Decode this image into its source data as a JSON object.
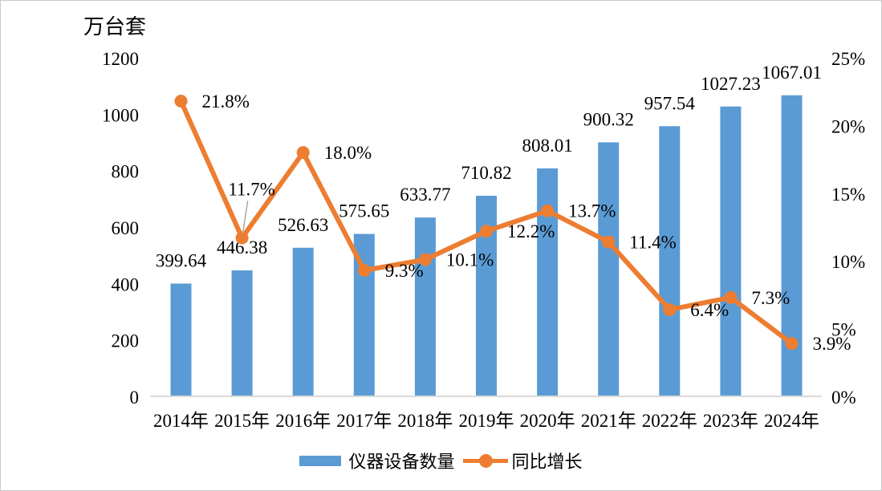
{
  "chart_data": {
    "type": "bar+line combo",
    "title": "",
    "categories": [
      "2014年",
      "2015年",
      "2016年",
      "2017年",
      "2018年",
      "2019年",
      "2020年",
      "2021年",
      "2022年",
      "2023年",
      "2024年"
    ],
    "series": [
      {
        "name": "仪器设备数量",
        "type": "bar",
        "axis": "left",
        "color": "#5B9BD5",
        "values": [
          399.64,
          446.38,
          526.63,
          575.65,
          633.77,
          710.82,
          808.01,
          900.32,
          957.54,
          1027.23,
          1067.01
        ],
        "labels": [
          "399.64",
          "446.38",
          "526.63",
          "575.65",
          "633.77",
          "710.82",
          "808.01",
          "900.32",
          "957.54",
          "1027.23",
          "1067.01"
        ]
      },
      {
        "name": "同比增长",
        "type": "line",
        "axis": "right",
        "color": "#ED7D31",
        "values": [
          21.8,
          11.7,
          18.0,
          9.3,
          10.1,
          12.2,
          13.7,
          11.4,
          6.4,
          7.3,
          3.9
        ],
        "labels": [
          "21.8%",
          "11.7%",
          "18.0%",
          "9.3%",
          "10.1%",
          "12.2%",
          "13.7%",
          "11.4%",
          "6.4%",
          "7.3%",
          "3.9%"
        ],
        "label_positions": [
          "right",
          "above",
          "right",
          "right",
          "right",
          "right",
          "right",
          "right",
          "right",
          "right",
          "right"
        ]
      }
    ],
    "y_left": {
      "title": "万台套",
      "min": 0,
      "max": 1200,
      "ticks": [
        "0",
        "200",
        "400",
        "600",
        "800",
        "1000",
        "1200"
      ]
    },
    "y_right": {
      "min": 0,
      "max": 25,
      "ticks": [
        "0%",
        "5%",
        "10%",
        "15%",
        "20%",
        "25%"
      ]
    },
    "grid": false,
    "legend_position": "bottom"
  },
  "legend": {
    "bar_label": "仪器设备数量",
    "line_label": "同比增长"
  },
  "colors": {
    "bar": "#5B9BD5",
    "line": "#ED7D31",
    "axis_line": "#D9D9D9",
    "leader_line": "#A6A6A6",
    "text": "#000000"
  }
}
